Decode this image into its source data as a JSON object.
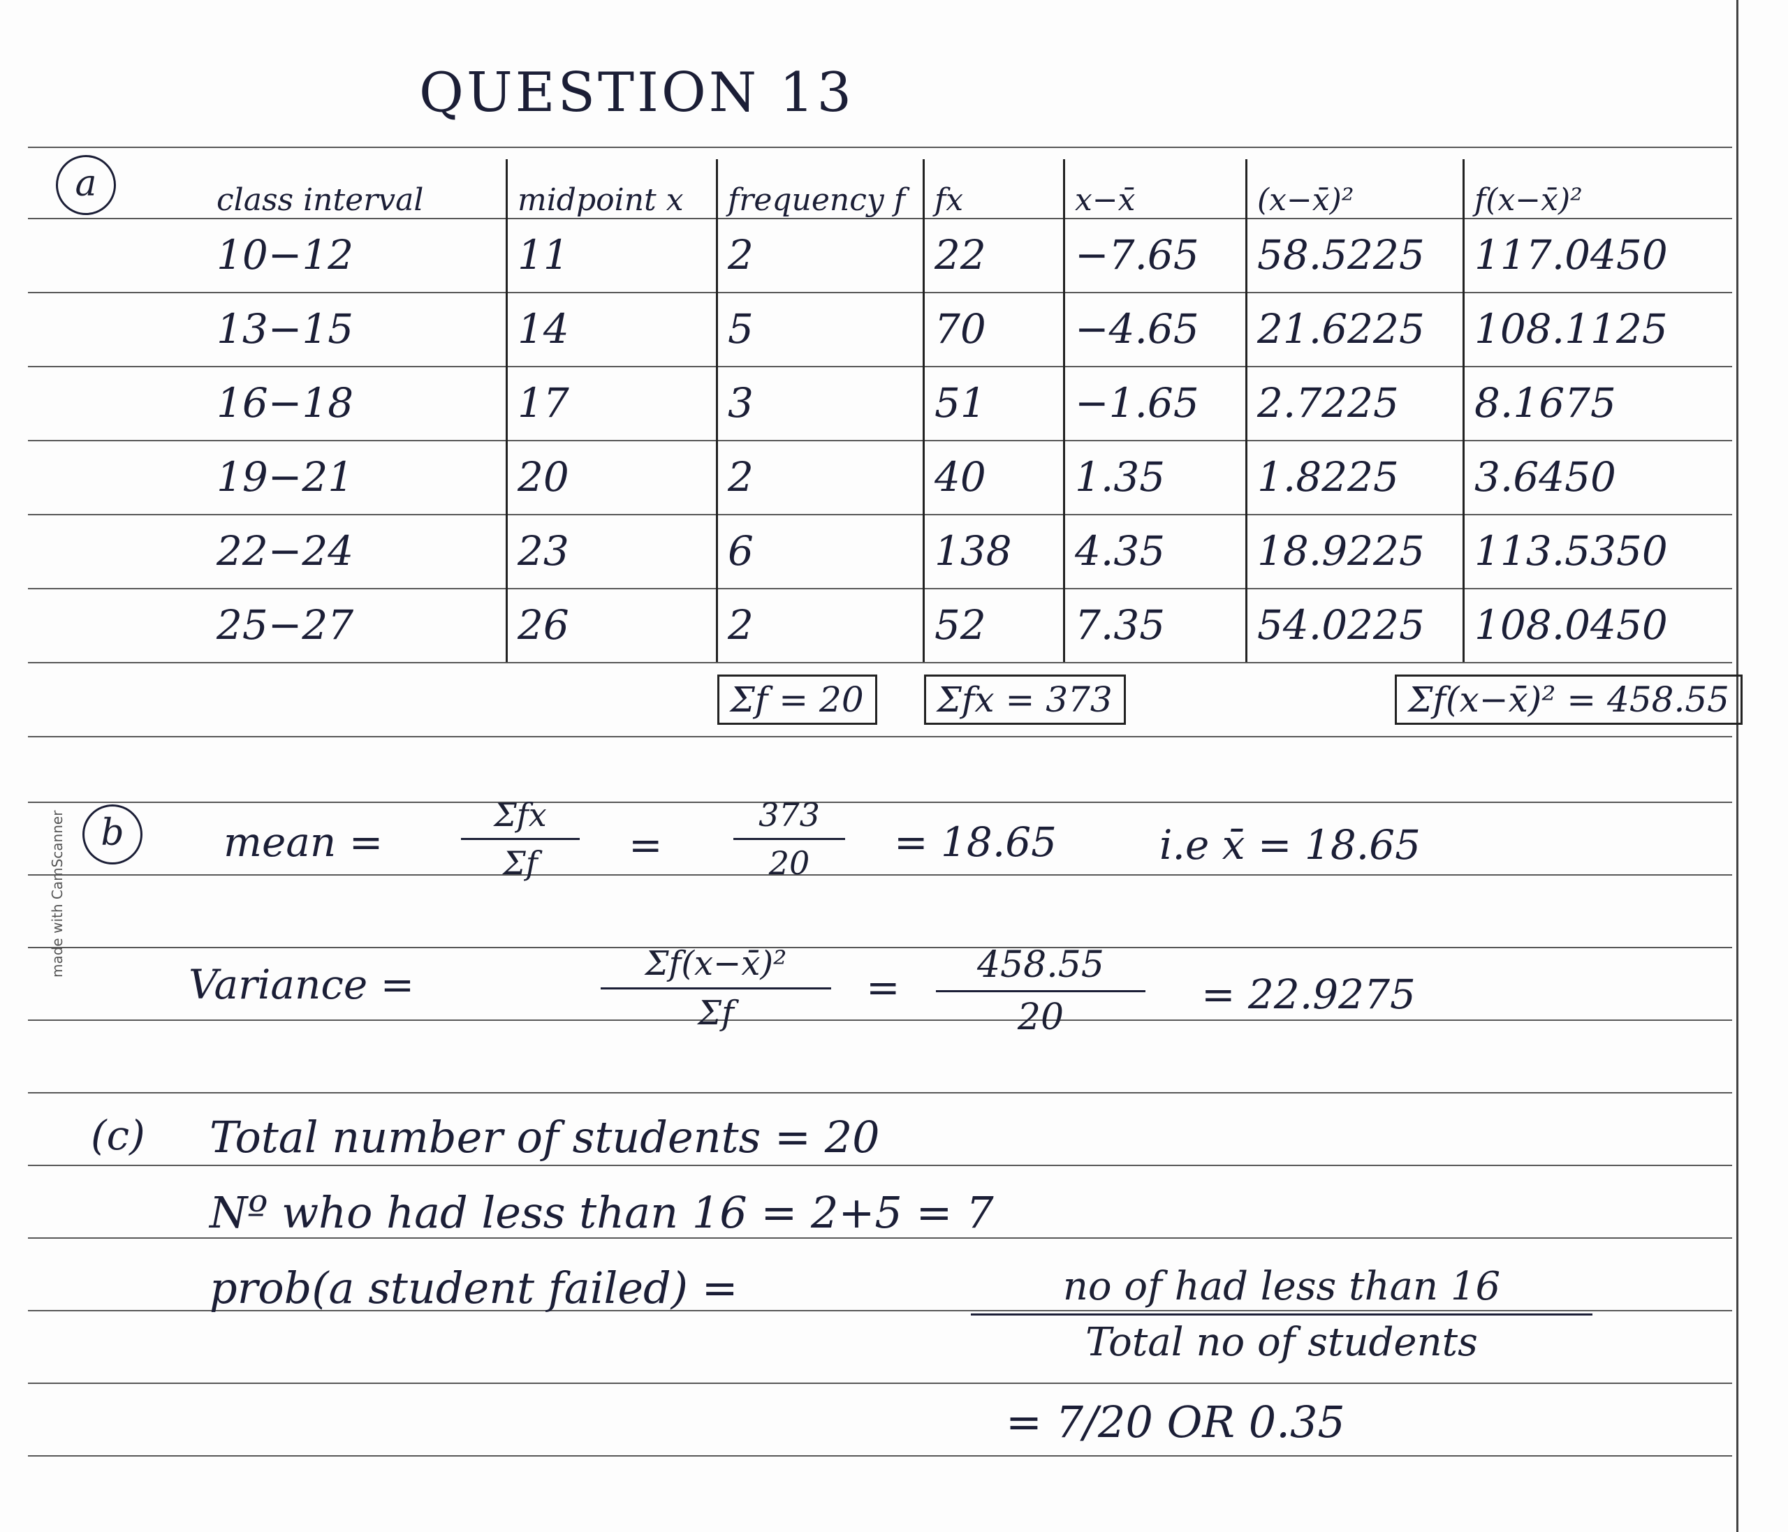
{
  "title": "QUESTION 13",
  "part_a": {
    "label": "a",
    "headers": [
      "class interval",
      "midpoint x",
      "frequency f",
      "fx",
      "x−x̄",
      "(x−x̄)²",
      "f(x−x̄)²"
    ],
    "rows": [
      [
        "10−12",
        "11",
        "2",
        "22",
        "−7.65",
        "58.5225",
        "117.0450"
      ],
      [
        "13−15",
        "14",
        "5",
        "70",
        "−4.65",
        "21.6225",
        "108.1125"
      ],
      [
        "16−18",
        "17",
        "3",
        "51",
        "−1.65",
        "2.7225",
        "8.1675"
      ],
      [
        "19−21",
        "20",
        "2",
        "40",
        "1.35",
        "1.8225",
        "3.6450"
      ],
      [
        "22−24",
        "23",
        "6",
        "138",
        "4.35",
        "18.9225",
        "113.5350"
      ],
      [
        "25−27",
        "26",
        "2",
        "52",
        "7.35",
        "54.0225",
        "108.0450"
      ]
    ],
    "sum_f": "Σf = 20",
    "sum_fx": "Σfx = 373",
    "sum_fdev2": "Σf(x−x̄)² = 458.55"
  },
  "part_b": {
    "label": "b",
    "mean_label": "mean =",
    "mean_num": "Σfx",
    "mean_den": "Σf",
    "mean_eq": "=",
    "mean_val_num": "373",
    "mean_val_den": "20",
    "mean_result": "= 18.65",
    "mean_ie": "i.e x̄ = 18.65",
    "var_label": "Variance =",
    "var_num": "Σf(x−x̄)²",
    "var_den": "Σf",
    "var_eq": "=",
    "var_val_num": "458.55",
    "var_val_den": "20",
    "var_result": "= 22.9275"
  },
  "part_c": {
    "label": "(c)",
    "line1": "Total number of students = 20",
    "line2": "Nº who had less than 16 =  2+5 = 7",
    "prob_label": "prob(a student failed) =",
    "prob_num": "no of had less than 16",
    "prob_den": "Total no of students",
    "prob_result": "= 7/20  OR  0.35"
  },
  "side_note": "made with CamScanner"
}
